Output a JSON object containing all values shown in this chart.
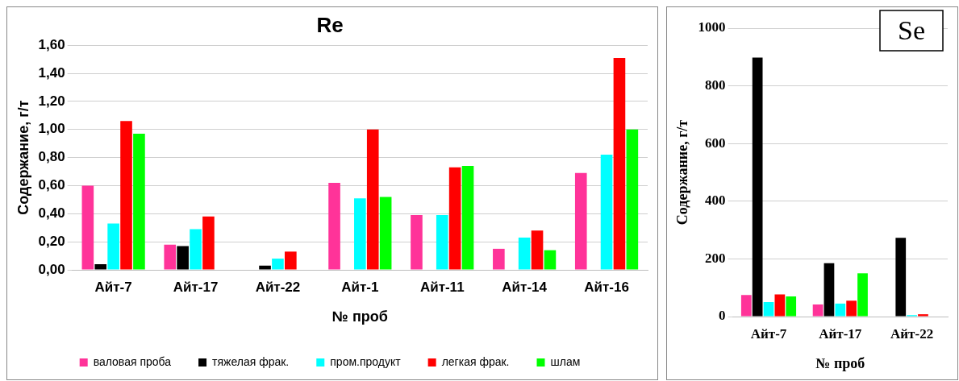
{
  "chart_data": [
    {
      "type": "bar",
      "title": "Re",
      "xlabel": "№ проб",
      "ylabel": "Содержание, г/т",
      "categories": [
        "Айт-7",
        "Айт-17",
        "Айт-22",
        "Айт-1",
        "Айт-11",
        "Айт-14",
        "Айт-16"
      ],
      "series": [
        {
          "name": "валовая проба",
          "color": "#ff3399",
          "values": [
            0.6,
            0.18,
            null,
            0.62,
            0.39,
            0.15,
            0.69
          ]
        },
        {
          "name": "тяжелая фрак.",
          "color": "#000000",
          "values": [
            0.04,
            0.17,
            0.03,
            null,
            null,
            null,
            null
          ]
        },
        {
          "name": "пром.продукт",
          "color": "#00ffff",
          "values": [
            0.33,
            0.29,
            0.08,
            0.51,
            0.39,
            0.23,
            0.82
          ]
        },
        {
          "name": "легкая фрак.",
          "color": "#ff0000",
          "values": [
            1.06,
            0.38,
            0.13,
            1.0,
            0.73,
            0.28,
            1.51
          ]
        },
        {
          "name": "шлам",
          "color": "#00ff00",
          "values": [
            0.97,
            null,
            null,
            0.52,
            0.74,
            0.14,
            1.0
          ]
        }
      ],
      "ylim": [
        0,
        1.6
      ],
      "yticks": [
        {
          "value": 0,
          "label": "0,00"
        },
        {
          "value": 0.2,
          "label": "0,20"
        },
        {
          "value": 0.4,
          "label": "0,40"
        },
        {
          "value": 0.6,
          "label": "0,60"
        },
        {
          "value": 0.8,
          "label": "0,80"
        },
        {
          "value": 1.0,
          "label": "1,00"
        },
        {
          "value": 1.2,
          "label": "1,20"
        },
        {
          "value": 1.4,
          "label": "1,40"
        },
        {
          "value": 1.6,
          "label": "1,60"
        }
      ],
      "grid": "y",
      "legend": "bottom"
    },
    {
      "type": "bar",
      "title": "Se",
      "xlabel": "№ проб",
      "ylabel": "Содержание, г/т",
      "categories": [
        "Айт-7",
        "Айт-17",
        "Айт-22"
      ],
      "series": [
        {
          "color": "#ff3399",
          "values": [
            75,
            42,
            null
          ]
        },
        {
          "color": "#000000",
          "values": [
            898,
            185,
            273
          ]
        },
        {
          "color": "#00ffff",
          "values": [
            50,
            45,
            5
          ]
        },
        {
          "color": "#ff0000",
          "values": [
            77,
            55,
            8
          ]
        },
        {
          "color": "#00ff00",
          "values": [
            70,
            150,
            null
          ]
        }
      ],
      "ylim": [
        0,
        1000
      ],
      "yticks": [
        0,
        200,
        400,
        600,
        800,
        1000
      ],
      "grid": "y",
      "legend": false
    }
  ]
}
